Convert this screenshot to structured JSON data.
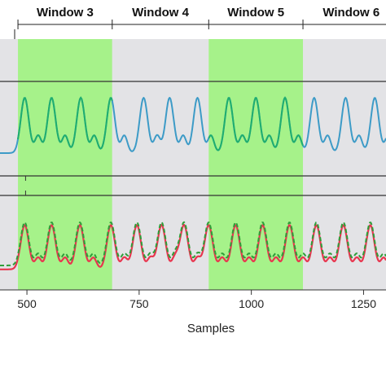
{
  "chart_data": {
    "type": "line",
    "xlabel": "Samples",
    "xlim": [
      440,
      1300
    ],
    "x_ticks": [
      500,
      750,
      1000,
      1250
    ],
    "windows": [
      {
        "label": "Window 3",
        "start": 480,
        "end": 690,
        "highlight": true
      },
      {
        "label": "Window 4",
        "start": 690,
        "end": 905,
        "highlight": false
      },
      {
        "label": "Window 5",
        "start": 905,
        "end": 1115,
        "highlight": true
      },
      {
        "label": "Window 6",
        "start": 1115,
        "end": 1330,
        "highlight": false
      }
    ],
    "panels": [
      {
        "name": "top",
        "ylim": [
          -1.2,
          1.2
        ],
        "series": [
          {
            "color": "#3d9bc7",
            "width": 2,
            "dash": "",
            "peaks_x": [
              495,
              555,
              620,
              687,
              760,
              818,
              880,
              950,
              1010,
              1075,
              1140,
              1210,
              1275
            ],
            "peak_y": 0.95,
            "trough_y": -0.75,
            "secondary_y": -0.15
          }
        ],
        "overlay_in_windows": {
          "color": "#1fae6e",
          "width": 2
        }
      },
      {
        "name": "bottom",
        "ylim": [
          -1.2,
          1.2
        ],
        "series": [
          {
            "color": "#e8364f",
            "width": 2.2,
            "dash": "",
            "peaks_x": [
              495,
              555,
              618,
              687,
              745,
              800,
              850,
              905,
              965,
              1025,
              1085,
              1145,
              1205,
              1265
            ],
            "peak_y": 0.85,
            "trough_y": -0.85,
            "secondary_y": -0.35
          },
          {
            "color": "#2f9e3a",
            "width": 2,
            "dash": "5,3",
            "peaks_x": [
              495,
              555,
              618,
              687,
              745,
              800,
              850,
              905,
              965,
              1025,
              1085,
              1145,
              1205,
              1265
            ],
            "peak_y": 0.95,
            "trough_y": -0.7,
            "secondary_y": -0.2
          }
        ]
      }
    ],
    "colors": {
      "window_highlight": "#a6f28a",
      "window_shade": "#e3e3e6",
      "divider": "#333333"
    }
  }
}
